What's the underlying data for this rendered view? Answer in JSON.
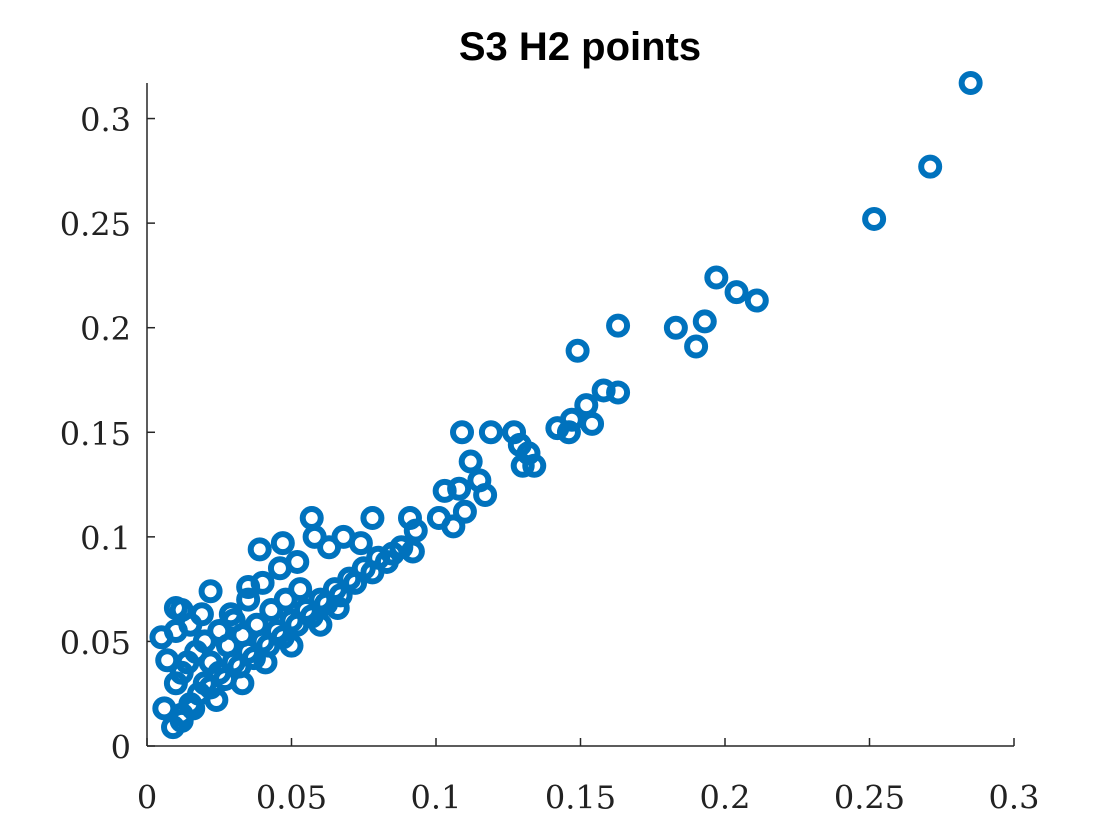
{
  "chart_data": {
    "type": "scatter",
    "title": "S3 H2 points",
    "color": "#0072bd",
    "xlim": [
      0,
      0.3
    ],
    "ylim": [
      0,
      0.317
    ],
    "xticks": [
      0,
      0.05,
      0.1,
      0.15,
      0.2,
      0.25,
      0.3
    ],
    "yticks": [
      0,
      0.05,
      0.1,
      0.15,
      0.2,
      0.25,
      0.3
    ],
    "x": [
      0.285,
      0.271,
      0.2516,
      0.197,
      0.204,
      0.211,
      0.183,
      0.193,
      0.19,
      0.163,
      0.149,
      0.158,
      0.163,
      0.152,
      0.147,
      0.154,
      0.142,
      0.146,
      0.109,
      0.119,
      0.127,
      0.129,
      0.132,
      0.112,
      0.13,
      0.134,
      0.115,
      0.117,
      0.103,
      0.108,
      0.101,
      0.106,
      0.11,
      0.091,
      0.093,
      0.092,
      0.078,
      0.057,
      0.039,
      0.047,
      0.022,
      0.005,
      0.007,
      0.006,
      0.009,
      0.01,
      0.012,
      0.019,
      0.029,
      0.035,
      0.012,
      0.015,
      0.018,
      0.02,
      0.022,
      0.025,
      0.027,
      0.03,
      0.032,
      0.035,
      0.037,
      0.04,
      0.042,
      0.045,
      0.047,
      0.05,
      0.052,
      0.055,
      0.057,
      0.06,
      0.062,
      0.065,
      0.067,
      0.07,
      0.072,
      0.075,
      0.078,
      0.08,
      0.083,
      0.085,
      0.088,
      0.068,
      0.058,
      0.063,
      0.074,
      0.052,
      0.046,
      0.04,
      0.035,
      0.03,
      0.025,
      0.02,
      0.017,
      0.014,
      0.01,
      0.012,
      0.022,
      0.028,
      0.033,
      0.038,
      0.043,
      0.048,
      0.053,
      0.015,
      0.01,
      0.012,
      0.016,
      0.024,
      0.033,
      0.041,
      0.05,
      0.06,
      0.066
    ],
    "values": [
      0.317,
      0.277,
      0.252,
      0.224,
      0.217,
      0.213,
      0.2,
      0.203,
      0.191,
      0.201,
      0.189,
      0.17,
      0.169,
      0.163,
      0.156,
      0.154,
      0.152,
      0.15,
      0.15,
      0.15,
      0.15,
      0.144,
      0.14,
      0.136,
      0.134,
      0.134,
      0.127,
      0.12,
      0.122,
      0.123,
      0.109,
      0.105,
      0.112,
      0.109,
      0.103,
      0.093,
      0.109,
      0.109,
      0.094,
      0.097,
      0.074,
      0.052,
      0.041,
      0.018,
      0.009,
      0.066,
      0.065,
      0.063,
      0.063,
      0.076,
      0.015,
      0.02,
      0.025,
      0.03,
      0.028,
      0.035,
      0.032,
      0.04,
      0.038,
      0.045,
      0.042,
      0.05,
      0.048,
      0.055,
      0.052,
      0.06,
      0.058,
      0.065,
      0.062,
      0.07,
      0.068,
      0.075,
      0.072,
      0.08,
      0.078,
      0.085,
      0.083,
      0.09,
      0.088,
      0.092,
      0.095,
      0.1,
      0.1,
      0.095,
      0.097,
      0.088,
      0.085,
      0.078,
      0.07,
      0.06,
      0.055,
      0.05,
      0.045,
      0.04,
      0.03,
      0.035,
      0.04,
      0.048,
      0.053,
      0.058,
      0.065,
      0.07,
      0.075,
      0.058,
      0.055,
      0.012,
      0.018,
      0.022,
      0.03,
      0.04,
      0.048,
      0.058,
      0.066
    ]
  }
}
